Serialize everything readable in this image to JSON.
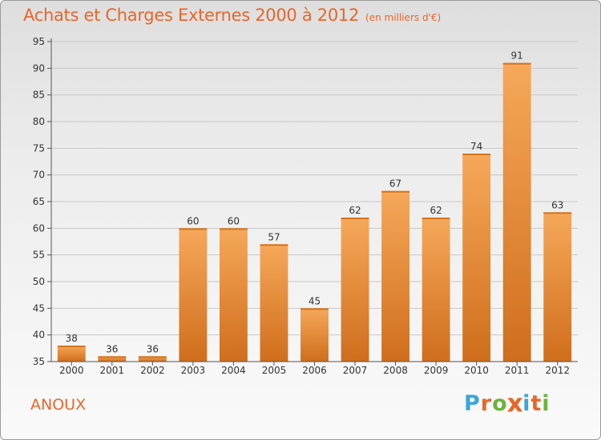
{
  "header": {
    "title": "Achats et Charges Externes 2000 à 2012",
    "subtitle": "(en milliers d'€)"
  },
  "footer": {
    "town": "ANOUX",
    "logo_letters": [
      "P",
      "r",
      "o",
      "x",
      "i",
      "t",
      "i"
    ],
    "logo_colors": [
      "#3ba6d8",
      "#e8662a",
      "#6cb33f",
      "#e8662a",
      "#3ba6d8",
      "#e8662a",
      "#6cb33f"
    ]
  },
  "chart_data": {
    "type": "bar",
    "categories": [
      "2000",
      "2001",
      "2002",
      "2003",
      "2004",
      "2005",
      "2006",
      "2007",
      "2008",
      "2009",
      "2010",
      "2011",
      "2012"
    ],
    "values": [
      38,
      36,
      36,
      60,
      60,
      57,
      45,
      62,
      67,
      62,
      74,
      91,
      63
    ],
    "ylim": [
      35,
      95
    ],
    "yticks": [
      35,
      40,
      45,
      50,
      55,
      60,
      65,
      70,
      75,
      80,
      85,
      90,
      95
    ],
    "grid": true,
    "bar_color": "#ef8e3a",
    "axis_color": "#555555"
  }
}
